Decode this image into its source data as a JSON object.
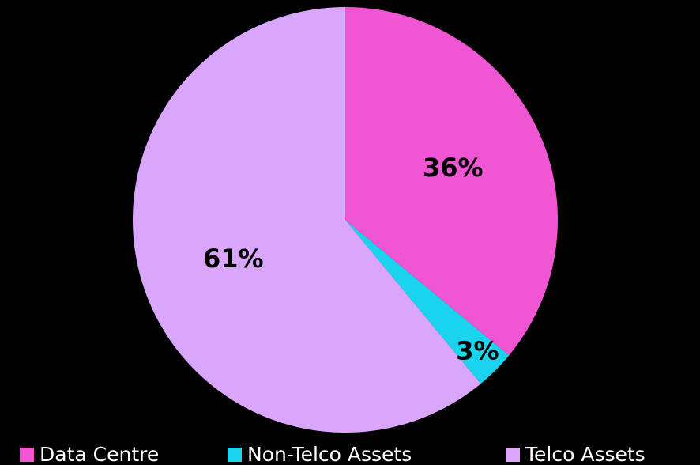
{
  "chart_data": {
    "type": "pie",
    "categories": [
      "Data Centre",
      "Non-Telco Assets",
      "Telco Assets"
    ],
    "values": [
      36,
      3,
      61
    ],
    "value_labels": [
      "36%",
      "3%",
      "61%"
    ],
    "colors": [
      "#f255d4",
      "#1ad3ee",
      "#d9a6fc"
    ],
    "legend": "bottom"
  }
}
